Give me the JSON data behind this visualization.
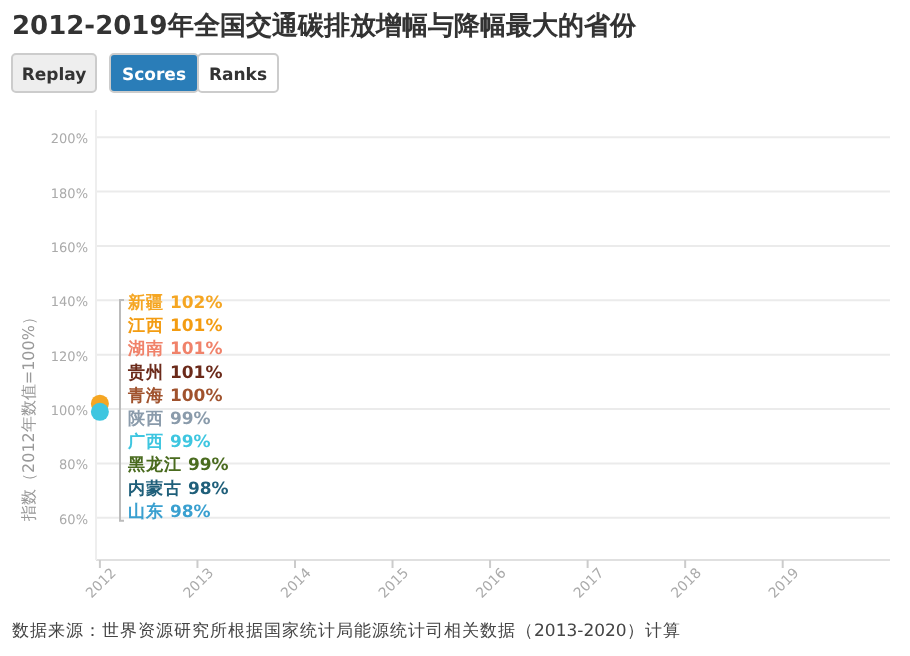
{
  "chart_data": {
    "type": "line",
    "title": "2012-2019年全国交通碳排放增幅与降幅最大的省份",
    "ylabel": "指数（2012年数值=100%）",
    "annotations": [
      "Replay",
      "Scores",
      "Ranks",
      "数据来源：世界资源研究所根据国家统计局能源统计司相关数据（2013-2020）计算"
    ],
    "x": [
      2012
    ],
    "xlim": [
      2011.96,
      2020.1
    ],
    "xticks": [
      2012,
      2013,
      2014,
      2015,
      2016,
      2017,
      2018,
      2019
    ],
    "ylim": [
      44.5,
      210
    ],
    "yticks": [
      {
        "value": 60,
        "label": "60%"
      },
      {
        "value": 80,
        "label": "80%"
      },
      {
        "value": 100,
        "label": "100%"
      },
      {
        "value": 120,
        "label": "120%"
      },
      {
        "value": 140,
        "label": "140%"
      },
      {
        "value": 160,
        "label": "160%"
      },
      {
        "value": 180,
        "label": "180%"
      },
      {
        "value": 200,
        "label": "200%"
      }
    ],
    "grid": "y",
    "marker": "circle",
    "legend": "left",
    "series": [
      {
        "name": "新疆 102%",
        "color": "#f5a623",
        "values": [
          102
        ]
      },
      {
        "name": "江西 101%",
        "color": "#f39c12",
        "values": [
          null
        ]
      },
      {
        "name": "湖南 101%",
        "color": "#f0826a",
        "values": [
          null
        ]
      },
      {
        "name": "贵州 101%",
        "color": "#6b2a1a",
        "values": [
          null
        ]
      },
      {
        "name": "青海 100%",
        "color": "#a0522d",
        "values": [
          null
        ]
      },
      {
        "name": "陕西 99%",
        "color": "#8a9bab",
        "values": [
          null
        ]
      },
      {
        "name": "广西 99%",
        "color": "#3ec6e0",
        "values": [
          99
        ]
      },
      {
        "name": "黑龙江 99%",
        "color": "#4a6b1f",
        "values": [
          null
        ]
      },
      {
        "name": "内蒙古 98%",
        "color": "#1f5f7a",
        "values": [
          null
        ]
      },
      {
        "name": "山东 98%",
        "color": "#3aa0d0",
        "values": [
          null
        ]
      }
    ]
  }
}
